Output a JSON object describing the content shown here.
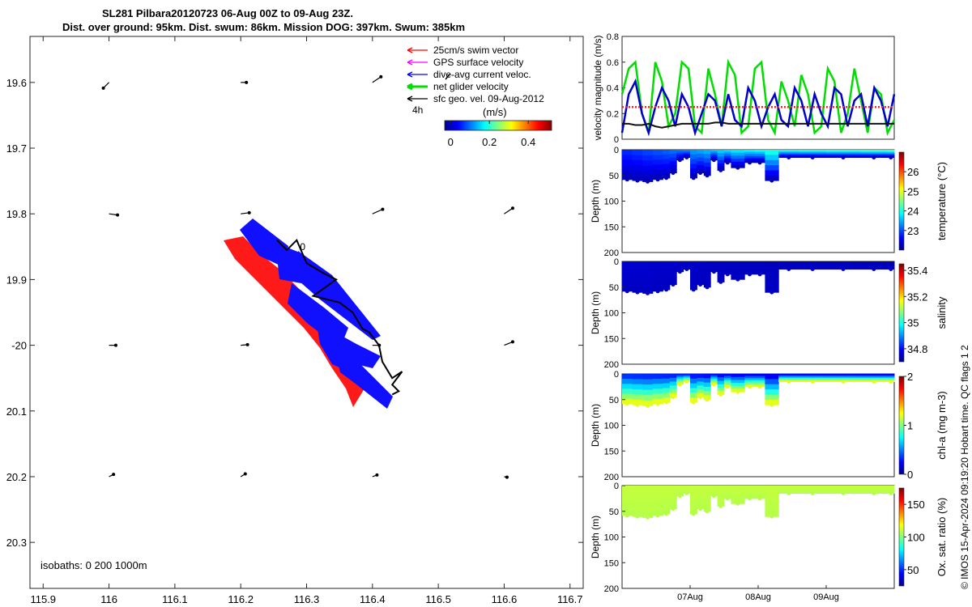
{
  "title_line1": "SL281 Pilbara20120723 06-Aug 00Z to 09-Aug 23Z.",
  "title_line2": "Dist. over ground: 95km. Dist. swum: 86km. Mission DOG: 397km. Swum: 385km",
  "credit": "© IMOS 15-Apr-2024 09:19:20 Hobart time. QC flags 1  2",
  "chart_data": [
    {
      "type": "scatter",
      "panel": "map",
      "x_ticks": [
        115.9,
        116,
        116.1,
        116.2,
        116.3,
        116.4,
        116.5,
        116.6,
        116.7
      ],
      "x_tick_labels": [
        "115.9",
        "116",
        "116.1",
        "116.2",
        "116.3",
        "116.4",
        "116.5",
        "116.6",
        "116.7"
      ],
      "y_ticks": [
        19.6,
        19.7,
        19.8,
        19.9,
        20.0,
        20.1,
        20.2,
        20.3
      ],
      "y_tick_labels": [
        "19.6",
        "19.7",
        "19.8",
        "19.9",
        "-20",
        "20.1",
        "20.2",
        "20.3"
      ],
      "xlim": [
        115.88,
        116.72
      ],
      "ylim": [
        19.53,
        20.37
      ],
      "legend": [
        "25cm/s swim vector",
        "GPS surface velocity",
        "dive-avg current veloc.",
        "net glider velocity",
        "sfc geo. vel. 09-Aug-2012"
      ],
      "legend_colors": [
        "#ff0000",
        "#ff00ff",
        "#0000ff",
        "#00dd00",
        "#000000"
      ],
      "legend_position": "top-right",
      "scale_label": "4h",
      "colorbar": {
        "label": "(m/s)",
        "ticks": [
          0,
          0.2,
          0.4
        ],
        "tick_labels": [
          "0",
          "0.2",
          "0.4"
        ],
        "range": [
          -0.03,
          0.52
        ]
      },
      "isobaths_label": "isobaths: 0   200  1000m",
      "track_label": "0",
      "glider_track": [
        [
          116.255,
          19.84
        ],
        [
          116.27,
          19.855
        ],
        [
          116.285,
          19.84
        ],
        [
          116.3,
          19.875
        ],
        [
          116.325,
          19.89
        ],
        [
          116.345,
          19.9
        ],
        [
          116.31,
          19.925
        ],
        [
          116.35,
          19.935
        ],
        [
          116.37,
          19.95
        ],
        [
          116.385,
          19.975
        ],
        [
          116.395,
          19.98
        ],
        [
          116.41,
          20.0
        ],
        [
          116.415,
          20.025
        ],
        [
          116.43,
          20.05
        ],
        [
          116.445,
          20.04
        ],
        [
          116.43,
          20.06
        ],
        [
          116.44,
          20.07
        ],
        [
          116.43,
          20.075
        ]
      ],
      "geo_vectors": [
        {
          "lon": 116.0,
          "lat": 19.6,
          "u": -0.1,
          "v": -0.1
        },
        {
          "lon": 116.2,
          "lat": 19.6,
          "u": 0.1,
          "v": 0.0
        },
        {
          "lon": 116.4,
          "lat": 19.6,
          "u": 0.15,
          "v": 0.1
        },
        {
          "lon": 116.0,
          "lat": 19.8,
          "u": 0.15,
          "v": -0.02
        },
        {
          "lon": 116.2,
          "lat": 19.8,
          "u": 0.15,
          "v": 0.02
        },
        {
          "lon": 116.4,
          "lat": 19.8,
          "u": 0.18,
          "v": 0.08
        },
        {
          "lon": 116.6,
          "lat": 19.8,
          "u": 0.15,
          "v": 0.1
        },
        {
          "lon": 116.0,
          "lat": 20.0,
          "u": 0.12,
          "v": 0.0
        },
        {
          "lon": 116.2,
          "lat": 20.0,
          "u": 0.12,
          "v": 0.01
        },
        {
          "lon": 116.4,
          "lat": 20.0,
          "u": 0.12,
          "v": 0.0
        },
        {
          "lon": 116.6,
          "lat": 20.0,
          "u": 0.15,
          "v": 0.06
        },
        {
          "lon": 116.0,
          "lat": 20.2,
          "u": 0.08,
          "v": 0.04
        },
        {
          "lon": 116.2,
          "lat": 20.2,
          "u": 0.08,
          "v": 0.05
        },
        {
          "lon": 116.4,
          "lat": 20.2,
          "u": 0.08,
          "v": 0.03
        },
        {
          "lon": 116.6,
          "lat": 20.2,
          "u": 0.05,
          "v": -0.01
        }
      ]
    },
    {
      "type": "line",
      "panel": "velocity",
      "ylabel": "velocity magnitude (m/s)",
      "ylim": [
        0,
        0.8
      ],
      "y_ticks": [
        0,
        0.2,
        0.4,
        0.6,
        0.8
      ],
      "y_tick_labels": [
        "0",
        "0.2",
        "0.4",
        "0.6",
        "0.8"
      ],
      "x_range_days": [
        6,
        10
      ],
      "series": [
        {
          "color": "#00dd00",
          "values": [
            0.35,
            0.55,
            0.6,
            0.2,
            0.05,
            0.6,
            0.45,
            0.1,
            0.2,
            0.6,
            0.55,
            0.1,
            0.05,
            0.55,
            0.35,
            0.1,
            0.6,
            0.5,
            0.05,
            0.1,
            0.55,
            0.6,
            0.15,
            0.05,
            0.45,
            0.3,
            0.1,
            0.5,
            0.35,
            0.05,
            0.1,
            0.55,
            0.45,
            0.05,
            0.2,
            0.55,
            0.3,
            0.05,
            0.4,
            0.35,
            0.05,
            0.15
          ]
        },
        {
          "color": "#0000cc",
          "values": [
            0.05,
            0.35,
            0.45,
            0.2,
            0.05,
            0.25,
            0.4,
            0.3,
            0.1,
            0.35,
            0.25,
            0.05,
            0.2,
            0.35,
            0.3,
            0.1,
            0.35,
            0.15,
            0.1,
            0.4,
            0.3,
            0.1,
            0.25,
            0.35,
            0.15,
            0.1,
            0.4,
            0.3,
            0.1,
            0.35,
            0.2,
            0.1,
            0.4,
            0.35,
            0.1,
            0.3,
            0.35,
            0.1,
            0.4,
            0.3,
            0.1,
            0.35
          ]
        },
        {
          "color": "#ff2222",
          "values": [
            0.25,
            0.25,
            0.25,
            0.25,
            0.25,
            0.25,
            0.25,
            0.25,
            0.25,
            0.25,
            0.25,
            0.25,
            0.25,
            0.25,
            0.25,
            0.25,
            0.25,
            0.25,
            0.25,
            0.25,
            0.25,
            0.25,
            0.25,
            0.25,
            0.25,
            0.25,
            0.25,
            0.25,
            0.25,
            0.25,
            0.25,
            0.25,
            0.25,
            0.25,
            0.25,
            0.25,
            0.25,
            0.25,
            0.25,
            0.25,
            0.25,
            0.25
          ]
        },
        {
          "color": "#111111",
          "values": [
            0.12,
            0.12,
            0.11,
            0.11,
            0.12,
            0.1,
            0.09,
            0.1,
            0.11,
            0.12,
            0.12,
            0.12,
            0.12,
            0.12,
            0.13,
            0.13,
            0.12,
            0.12,
            0.12,
            0.12,
            0.12,
            0.12,
            0.12,
            0.12,
            0.12,
            0.12,
            0.12,
            0.12,
            0.12,
            0.12,
            0.12,
            0.12,
            0.12,
            0.12,
            0.12,
            0.12,
            0.12,
            0.12,
            0.12,
            0.12,
            0.12,
            0.12
          ]
        }
      ]
    },
    {
      "type": "heatmap",
      "panel": "temperature",
      "ylabel": "Depth (m)",
      "ylim": [
        0,
        200
      ],
      "y_ticks": [
        0,
        50,
        100,
        150,
        200
      ],
      "clabel": "temperature (°C)",
      "clim": [
        22,
        27
      ],
      "c_ticks": [
        23,
        24,
        25,
        26
      ],
      "profiles": [
        [
          6.0,
          58
        ],
        [
          6.15,
          60
        ],
        [
          6.3,
          62
        ],
        [
          6.45,
          58
        ],
        [
          6.6,
          55
        ],
        [
          6.7,
          45
        ],
        [
          6.8,
          20
        ],
        [
          6.9,
          15
        ],
        [
          7.0,
          55
        ],
        [
          7.1,
          45
        ],
        [
          7.2,
          50
        ],
        [
          7.3,
          20
        ],
        [
          7.4,
          40
        ],
        [
          7.5,
          25
        ],
        [
          7.6,
          35
        ],
        [
          7.8,
          25
        ],
        [
          7.95,
          25
        ],
        [
          8.1,
          60
        ],
        [
          8.3,
          15
        ],
        [
          8.6,
          15
        ],
        [
          9.0,
          15
        ],
        [
          9.5,
          15
        ],
        [
          9.9,
          15
        ]
      ],
      "surface_start_value": 22.8,
      "surface_end_value": 24.3,
      "deep_value": 22.3
    },
    {
      "type": "heatmap",
      "panel": "salinity",
      "ylabel": "Depth (m)",
      "ylim": [
        0,
        200
      ],
      "y_ticks": [
        0,
        50,
        100,
        150,
        200
      ],
      "clabel": "salinity",
      "clim": [
        34.7,
        35.45
      ],
      "c_ticks": [
        34.8,
        35,
        35.2,
        35.4
      ],
      "profiles": [
        [
          6.0,
          58
        ],
        [
          6.15,
          60
        ],
        [
          6.3,
          62
        ],
        [
          6.45,
          58
        ],
        [
          6.6,
          55
        ],
        [
          6.7,
          45
        ],
        [
          6.8,
          20
        ],
        [
          6.9,
          15
        ],
        [
          7.0,
          55
        ],
        [
          7.1,
          45
        ],
        [
          7.2,
          50
        ],
        [
          7.3,
          20
        ],
        [
          7.4,
          40
        ],
        [
          7.5,
          25
        ],
        [
          7.6,
          35
        ],
        [
          7.8,
          25
        ],
        [
          7.95,
          25
        ],
        [
          8.1,
          60
        ],
        [
          8.3,
          15
        ],
        [
          8.6,
          15
        ],
        [
          9.0,
          15
        ],
        [
          9.5,
          15
        ],
        [
          9.9,
          15
        ]
      ],
      "surface_start_value": 34.76,
      "surface_end_value": 34.74,
      "deep_value": 34.75
    },
    {
      "type": "heatmap",
      "panel": "chla",
      "ylabel": "Depth (m)",
      "ylim": [
        0,
        200
      ],
      "y_ticks": [
        0,
        50,
        100,
        150,
        200
      ],
      "clabel": "chl-a (mg m-3)",
      "clim": [
        0,
        2
      ],
      "c_ticks": [
        0,
        1,
        2
      ],
      "profiles": [
        [
          6.0,
          58
        ],
        [
          6.15,
          60
        ],
        [
          6.3,
          62
        ],
        [
          6.45,
          58
        ],
        [
          6.6,
          55
        ],
        [
          6.7,
          45
        ],
        [
          6.8,
          20
        ],
        [
          6.9,
          15
        ],
        [
          7.0,
          55
        ],
        [
          7.1,
          45
        ],
        [
          7.2,
          50
        ],
        [
          7.3,
          20
        ],
        [
          7.4,
          40
        ],
        [
          7.5,
          25
        ],
        [
          7.6,
          35
        ],
        [
          7.8,
          25
        ],
        [
          7.95,
          25
        ],
        [
          8.1,
          60
        ],
        [
          8.3,
          15
        ],
        [
          8.6,
          15
        ],
        [
          9.0,
          15
        ],
        [
          9.5,
          15
        ],
        [
          9.9,
          15
        ]
      ],
      "surface_start_value": 0.35,
      "surface_end_value": 0.2,
      "deep_value": 1.2
    },
    {
      "type": "heatmap",
      "panel": "oxygen",
      "ylabel": "Depth (m)",
      "ylim": [
        0,
        200
      ],
      "y_ticks": [
        0,
        50,
        100,
        150,
        200
      ],
      "clabel": "Ox. sat. ratio (%)",
      "clim": [
        25,
        175
      ],
      "c_ticks": [
        50,
        100,
        150
      ],
      "x_ticks": [
        7,
        8,
        9
      ],
      "x_tick_labels": [
        "07Aug",
        "08Aug",
        "09Aug"
      ],
      "profiles": [
        [
          6.0,
          58
        ],
        [
          6.15,
          60
        ],
        [
          6.3,
          62
        ],
        [
          6.45,
          58
        ],
        [
          6.6,
          55
        ],
        [
          6.7,
          45
        ],
        [
          6.8,
          20
        ],
        [
          6.9,
          15
        ],
        [
          7.0,
          55
        ],
        [
          7.1,
          45
        ],
        [
          7.2,
          50
        ],
        [
          7.3,
          20
        ],
        [
          7.4,
          40
        ],
        [
          7.5,
          25
        ],
        [
          7.6,
          35
        ],
        [
          7.8,
          25
        ],
        [
          7.95,
          25
        ],
        [
          8.1,
          60
        ],
        [
          8.3,
          15
        ],
        [
          8.6,
          15
        ],
        [
          9.0,
          15
        ],
        [
          9.5,
          15
        ],
        [
          9.9,
          15
        ]
      ],
      "surface_start_value": 110,
      "surface_end_value": 110,
      "deep_value": 108
    }
  ]
}
